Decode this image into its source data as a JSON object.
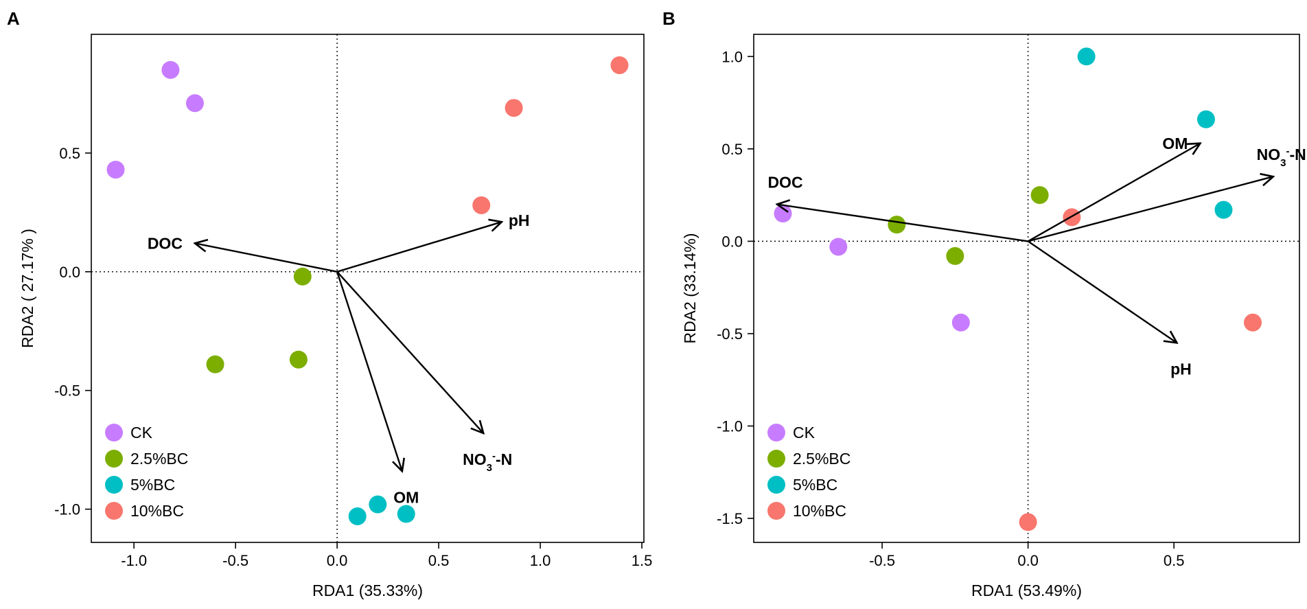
{
  "colors": {
    "CK": "#C77CFF",
    "2.5%BC": "#7CAE00",
    "5%BC": "#00BFC4",
    "10%BC": "#F8766D"
  },
  "chart_data": [
    {
      "type": "scatter",
      "panel": "A",
      "xlabel": "RDA1 (35.33%)",
      "ylabel": "RDA2 ( 27.17% )",
      "xlim": [
        -1.21,
        1.51
      ],
      "ylim": [
        -1.14,
        1.0
      ],
      "xticks": [
        -1.0,
        -0.5,
        0.0,
        0.5,
        1.0,
        1.5
      ],
      "xtick_labels": [
        "-1.0",
        "-0.5",
        "0.0",
        "0.5",
        "1.0",
        "1.5"
      ],
      "yticks": [
        -1.0,
        -0.5,
        0.0,
        0.5
      ],
      "ytick_labels": [
        "-1.0",
        "-0.5",
        "0.0",
        "0.5"
      ],
      "legend": {
        "position": "bottom-left",
        "entries": [
          "CK",
          "2.5%BC",
          "5%BC",
          "10%BC"
        ]
      },
      "points": [
        {
          "group": "CK",
          "x": -0.82,
          "y": 0.85
        },
        {
          "group": "CK",
          "x": -0.7,
          "y": 0.71
        },
        {
          "group": "CK",
          "x": -1.09,
          "y": 0.43
        },
        {
          "group": "2.5%BC",
          "x": -0.17,
          "y": -0.02
        },
        {
          "group": "2.5%BC",
          "x": -0.6,
          "y": -0.39
        },
        {
          "group": "2.5%BC",
          "x": -0.19,
          "y": -0.37
        },
        {
          "group": "5%BC",
          "x": 0.1,
          "y": -1.03
        },
        {
          "group": "5%BC",
          "x": 0.2,
          "y": -0.98
        },
        {
          "group": "5%BC",
          "x": 0.34,
          "y": -1.02
        },
        {
          "group": "10%BC",
          "x": 1.39,
          "y": 0.87
        },
        {
          "group": "10%BC",
          "x": 0.87,
          "y": 0.69
        },
        {
          "group": "10%BC",
          "x": 0.71,
          "y": 0.28
        }
      ],
      "arrows": [
        {
          "name": "DOC",
          "x": -0.7,
          "y": 0.12,
          "label_pos": "left"
        },
        {
          "name": "pH",
          "x": 0.81,
          "y": 0.21,
          "label_pos": "right"
        },
        {
          "name": "OM",
          "x": 0.32,
          "y": -0.84,
          "label_pos": "below"
        },
        {
          "name": "NO3-N",
          "x": 0.72,
          "y": -0.68,
          "label_pos": "below"
        }
      ]
    },
    {
      "type": "scatter",
      "panel": "B",
      "xlabel": "RDA1 (53.49%)",
      "ylabel": "RDA2 (33.14%)",
      "xlim": [
        -0.94,
        0.93
      ],
      "ylim": [
        -1.63,
        1.12
      ],
      "xticks": [
        -0.5,
        0.0,
        0.5
      ],
      "xtick_labels": [
        "-0.5",
        "0.0",
        "0.5"
      ],
      "yticks": [
        -1.5,
        -1.0,
        -0.5,
        0.0,
        0.5,
        1.0
      ],
      "ytick_labels": [
        "-1.5",
        "-1.0",
        "-0.5",
        "0.0",
        "0.5",
        "1.0"
      ],
      "legend": {
        "position": "bottom-left",
        "entries": [
          "CK",
          "2.5%BC",
          "5%BC",
          "10%BC"
        ]
      },
      "points": [
        {
          "group": "CK",
          "x": -0.84,
          "y": 0.15
        },
        {
          "group": "CK",
          "x": -0.65,
          "y": -0.03
        },
        {
          "group": "CK",
          "x": -0.23,
          "y": -0.44
        },
        {
          "group": "2.5%BC",
          "x": 0.04,
          "y": 0.25
        },
        {
          "group": "2.5%BC",
          "x": -0.45,
          "y": 0.09
        },
        {
          "group": "2.5%BC",
          "x": -0.25,
          "y": -0.08
        },
        {
          "group": "5%BC",
          "x": 0.2,
          "y": 1.0
        },
        {
          "group": "5%BC",
          "x": 0.61,
          "y": 0.66
        },
        {
          "group": "5%BC",
          "x": 0.67,
          "y": 0.17
        },
        {
          "group": "10%BC",
          "x": 0.15,
          "y": 0.13
        },
        {
          "group": "10%BC",
          "x": 0.77,
          "y": -0.44
        },
        {
          "group": "10%BC",
          "x": 0.0,
          "y": -1.52
        }
      ],
      "arrows": [
        {
          "name": "DOC",
          "x": -0.86,
          "y": 0.2,
          "label_pos": "above"
        },
        {
          "name": "OM",
          "x": 0.59,
          "y": 0.53,
          "label_pos": "left"
        },
        {
          "name": "NO3-N",
          "x": 0.84,
          "y": 0.35,
          "label_pos": "above"
        },
        {
          "name": "pH",
          "x": 0.51,
          "y": -0.55,
          "label_pos": "below"
        }
      ]
    }
  ]
}
